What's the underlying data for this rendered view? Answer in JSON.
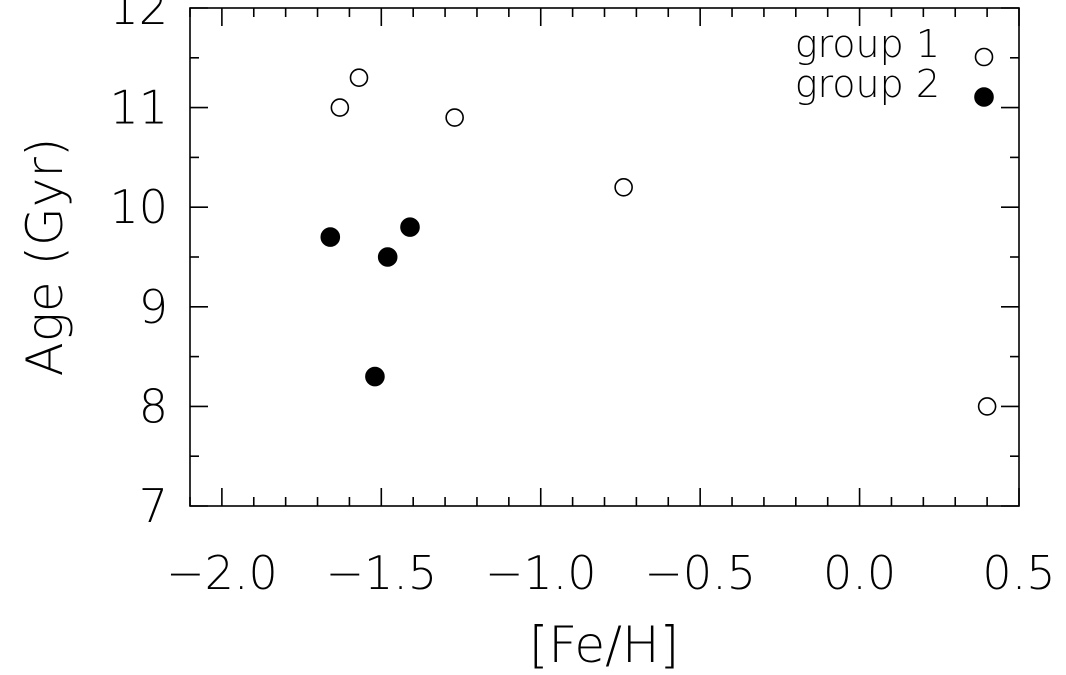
{
  "chart_data": {
    "type": "scatter",
    "title": "",
    "xlabel": "[Fe/H]",
    "ylabel": "Age (Gyr)",
    "xlim": [
      -2.1,
      0.5
    ],
    "ylim": [
      7,
      12
    ],
    "x_ticks": [
      -2.0,
      -1.5,
      -1.0,
      -0.5,
      0.0,
      0.5
    ],
    "x_tick_labels": [
      "−2.0",
      "−1.5",
      "−1.0",
      "−0.5",
      "0.0",
      "0.5"
    ],
    "y_ticks": [
      7,
      8,
      9,
      10,
      11,
      12
    ],
    "y_tick_labels": [
      "7",
      "8",
      "9",
      "10",
      "11",
      "12"
    ],
    "grid": false,
    "legend_position": "top-right",
    "series": [
      {
        "name": "group 1",
        "marker": "open-circle",
        "color": "#000000",
        "points": [
          {
            "x": -1.63,
            "y": 11.0
          },
          {
            "x": -1.57,
            "y": 11.3
          },
          {
            "x": -1.27,
            "y": 10.9
          },
          {
            "x": -0.74,
            "y": 10.2
          },
          {
            "x": 0.4,
            "y": 8.0
          }
        ]
      },
      {
        "name": "group 2",
        "marker": "filled-circle",
        "color": "#000000",
        "points": [
          {
            "x": -1.66,
            "y": 9.7
          },
          {
            "x": -1.48,
            "y": 9.5
          },
          {
            "x": -1.41,
            "y": 9.8
          },
          {
            "x": -1.52,
            "y": 8.3
          }
        ]
      }
    ]
  }
}
